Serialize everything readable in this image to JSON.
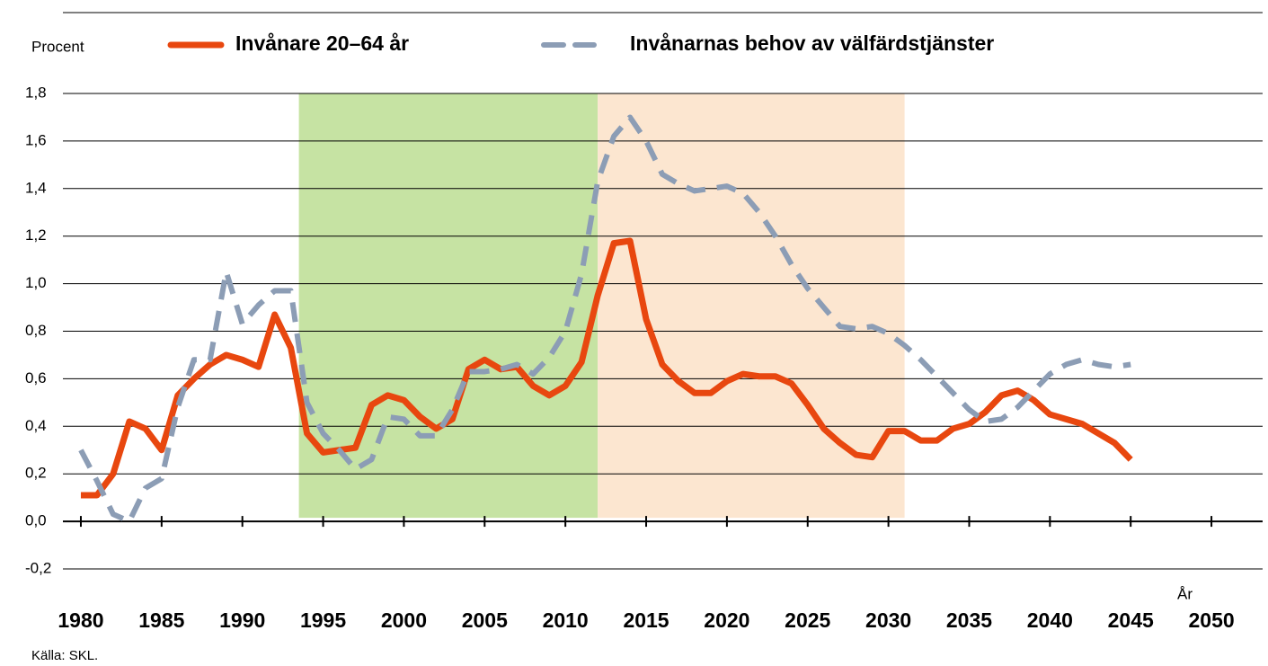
{
  "chart_data": {
    "type": "line",
    "y_axis_label": "Procent",
    "x_axis_label": "År",
    "source": "Källa: SKL.",
    "x": [
      1980,
      1981,
      1982,
      1983,
      1984,
      1985,
      1986,
      1987,
      1988,
      1989,
      1990,
      1991,
      1992,
      1993,
      1994,
      1995,
      1996,
      1997,
      1998,
      1999,
      2000,
      2001,
      2002,
      2003,
      2004,
      2005,
      2006,
      2007,
      2008,
      2009,
      2010,
      2011,
      2012,
      2013,
      2014,
      2015,
      2016,
      2017,
      2018,
      2019,
      2020,
      2021,
      2022,
      2023,
      2024,
      2025,
      2026,
      2027,
      2028,
      2029,
      2030,
      2031,
      2032,
      2033,
      2034,
      2035,
      2036,
      2037,
      2038,
      2039,
      2040,
      2041,
      2042,
      2043,
      2044,
      2045
    ],
    "series": [
      {
        "name": "Invånare 20–64 år",
        "color": "#e8470f",
        "dashed": false,
        "values": [
          0.11,
          0.11,
          0.2,
          0.42,
          0.39,
          0.3,
          0.53,
          0.6,
          0.66,
          0.7,
          0.68,
          0.65,
          0.87,
          0.73,
          0.37,
          0.29,
          0.3,
          0.31,
          0.49,
          0.53,
          0.51,
          0.44,
          0.39,
          0.43,
          0.64,
          0.68,
          0.64,
          0.65,
          0.57,
          0.53,
          0.57,
          0.67,
          0.95,
          1.17,
          1.18,
          0.85,
          0.66,
          0.59,
          0.54,
          0.54,
          0.59,
          0.62,
          0.61,
          0.61,
          0.58,
          0.49,
          0.39,
          0.33,
          0.28,
          0.27,
          0.38,
          0.38,
          0.34,
          0.34,
          0.39,
          0.41,
          0.46,
          0.53,
          0.55,
          0.51,
          0.45,
          0.43,
          0.41,
          0.37,
          0.33,
          0.26
        ]
      },
      {
        "name": "Invånarnas behov av välfärdstjänster",
        "color": "#8c9db5",
        "dashed": true,
        "values": [
          0.3,
          0.17,
          0.03,
          0.0,
          0.14,
          0.18,
          0.48,
          0.68,
          0.68,
          1.05,
          0.83,
          0.91,
          0.97,
          0.97,
          0.5,
          0.37,
          0.3,
          0.22,
          0.26,
          0.44,
          0.43,
          0.36,
          0.36,
          0.47,
          0.63,
          0.63,
          0.64,
          0.66,
          0.62,
          0.69,
          0.8,
          1.04,
          1.43,
          1.62,
          1.7,
          1.6,
          1.46,
          1.42,
          1.39,
          1.4,
          1.41,
          1.38,
          1.3,
          1.2,
          1.08,
          0.98,
          0.9,
          0.82,
          0.81,
          0.82,
          0.79,
          0.74,
          0.68,
          0.61,
          0.54,
          0.47,
          0.42,
          0.43,
          0.48,
          0.55,
          0.62,
          0.66,
          0.68,
          0.66,
          0.65,
          0.66
        ]
      }
    ],
    "shaded_regions": [
      {
        "from": 1993.5,
        "to": 2012,
        "color": "#c6e3a3"
      },
      {
        "from": 2012,
        "to": 2031,
        "color": "#fce6d0"
      }
    ],
    "xlim": [
      1979,
      2053
    ],
    "xticks": [
      1980,
      1985,
      1990,
      1995,
      2000,
      2005,
      2010,
      2015,
      2020,
      2025,
      2030,
      2035,
      2040,
      2045,
      2050
    ],
    "ylim": [
      -0.2,
      1.8
    ],
    "yticks": [
      {
        "value": -0.2,
        "label": "-0,2"
      },
      {
        "value": 0.0,
        "label": "0,0"
      },
      {
        "value": 0.2,
        "label": "0,2"
      },
      {
        "value": 0.4,
        "label": "0,4"
      },
      {
        "value": 0.6,
        "label": "0,6"
      },
      {
        "value": 0.8,
        "label": "0,8"
      },
      {
        "value": 1.0,
        "label": "1,0"
      },
      {
        "value": 1.2,
        "label": "1,2"
      },
      {
        "value": 1.4,
        "label": "1,4"
      },
      {
        "value": 1.6,
        "label": "1,6"
      },
      {
        "value": 1.8,
        "label": "1,8"
      }
    ],
    "grid": true
  }
}
